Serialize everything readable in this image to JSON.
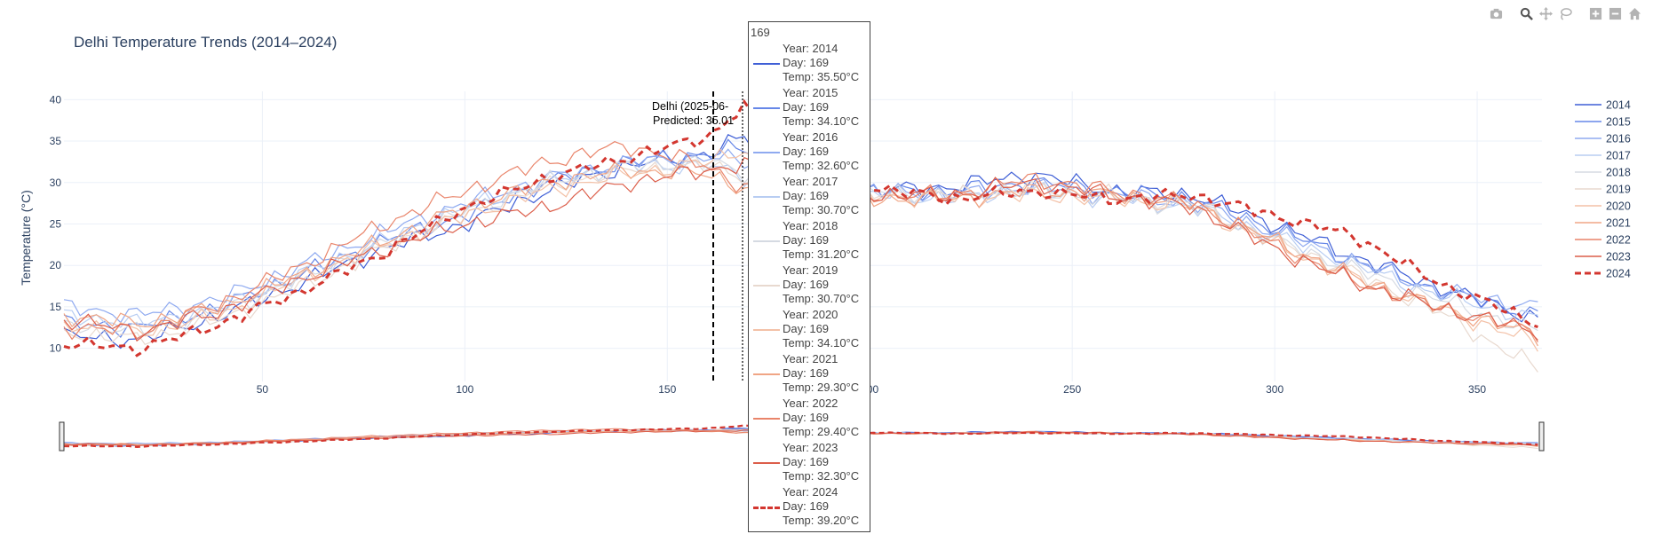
{
  "colors": {
    "2014": "#3f5fd6",
    "2015": "#6687e8",
    "2016": "#8faaf0",
    "2017": "#b8cdf2",
    "2018": "#d5dae2",
    "2019": "#e8d9cf",
    "2020": "#f3c1a7",
    "2021": "#f0a585",
    "2022": "#e9846a",
    "2023": "#dc5e4a",
    "2024": "#d3362f"
  },
  "modebar": {
    "icons": [
      "camera-icon",
      "zoom-icon",
      "pan-icon",
      "lasso-icon",
      "zoom-in-icon",
      "zoom-out-icon",
      "home-icon"
    ]
  },
  "annotation": {
    "line1": "Delhi (2025-06-",
    "line2": "Predicted: 35.01"
  },
  "hover": {
    "title": "169",
    "items": [
      {
        "year": "Year: 2014",
        "day": "Day: 169",
        "temp": "Temp: 35.50°C"
      },
      {
        "year": "Year: 2015",
        "day": "Day: 169",
        "temp": "Temp: 34.10°C"
      },
      {
        "year": "Year: 2016",
        "day": "Day: 169",
        "temp": "Temp: 32.60°C"
      },
      {
        "year": "Year: 2017",
        "day": "Day: 169",
        "temp": "Temp: 30.70°C"
      },
      {
        "year": "Year: 2018",
        "day": "Day: 169",
        "temp": "Temp: 31.20°C"
      },
      {
        "year": "Year: 2019",
        "day": "Day: 169",
        "temp": "Temp: 30.70°C"
      },
      {
        "year": "Year: 2020",
        "day": "Day: 169",
        "temp": "Temp: 34.10°C"
      },
      {
        "year": "Year: 2021",
        "day": "Day: 169",
        "temp": "Temp: 29.30°C"
      },
      {
        "year": "Year: 2022",
        "day": "Day: 169",
        "temp": "Temp: 29.40°C"
      },
      {
        "year": "Year: 2023",
        "day": "Day: 169",
        "temp": "Temp: 32.30°C"
      },
      {
        "year": "Year: 2024",
        "day": "Day: 169",
        "temp": "Temp: 39.20°C"
      }
    ]
  },
  "chart_data": {
    "type": "line",
    "title": "Delhi Temperature Trends (2014–2024)",
    "xlabel": "",
    "ylabel": "Temperature (°C)",
    "xlim": [
      1,
      366
    ],
    "ylim": [
      6,
      41
    ],
    "x_ticks": [
      50,
      100,
      150,
      200,
      250,
      300,
      350
    ],
    "y_ticks": [
      10,
      15,
      20,
      25,
      30,
      35,
      40
    ],
    "grid": true,
    "legend_position": "right",
    "rangeslider": true,
    "vertical_marker_x": 169,
    "series": [
      {
        "name": "2014",
        "dash": "solid",
        "amp": 1.2,
        "offset": 0.0,
        "x": [
          1,
          20,
          40,
          60,
          80,
          100,
          120,
          140,
          160,
          169,
          180,
          200,
          220,
          240,
          260,
          280,
          300,
          320,
          340,
          365
        ],
        "values": [
          11.5,
          11.0,
          14.0,
          18.0,
          22.0,
          25.0,
          29.0,
          32.0,
          33.5,
          35.5,
          30.0,
          29.0,
          29.5,
          31.0,
          29.0,
          28.5,
          25.0,
          21.0,
          17.5,
          13.5
        ]
      },
      {
        "name": "2015",
        "dash": "solid",
        "amp": 1.2,
        "offset": 0.3,
        "x": [
          1,
          20,
          40,
          60,
          80,
          100,
          120,
          140,
          160,
          169,
          180,
          200,
          220,
          240,
          260,
          280,
          300,
          320,
          340,
          365
        ],
        "values": [
          13.0,
          12.5,
          15.0,
          19.0,
          23.0,
          26.0,
          30.0,
          32.5,
          33.5,
          34.1,
          30.5,
          29.0,
          29.0,
          30.0,
          29.0,
          28.0,
          24.5,
          20.5,
          17.0,
          14.0
        ]
      },
      {
        "name": "2016",
        "dash": "solid",
        "amp": 1.2,
        "offset": 0.6,
        "x": [
          1,
          20,
          40,
          60,
          80,
          100,
          120,
          140,
          160,
          169,
          180,
          200,
          220,
          240,
          260,
          280,
          300,
          320,
          340,
          365
        ],
        "values": [
          15.0,
          14.0,
          16.0,
          20.0,
          24.0,
          27.5,
          30.5,
          32.5,
          33.0,
          32.6,
          30.0,
          29.0,
          28.5,
          29.5,
          28.5,
          27.5,
          24.0,
          20.5,
          17.0,
          15.0
        ]
      },
      {
        "name": "2017",
        "dash": "solid",
        "amp": 1.2,
        "offset": 0.9,
        "x": [
          1,
          20,
          40,
          60,
          80,
          100,
          120,
          140,
          160,
          169,
          180,
          200,
          220,
          240,
          260,
          280,
          300,
          320,
          340,
          365
        ],
        "values": [
          14.0,
          13.0,
          15.0,
          19.0,
          23.0,
          27.0,
          30.0,
          32.0,
          32.0,
          30.7,
          29.5,
          28.5,
          28.0,
          29.0,
          28.0,
          27.0,
          23.5,
          20.0,
          16.5,
          13.5
        ]
      },
      {
        "name": "2018",
        "dash": "solid",
        "amp": 1.2,
        "offset": 1.2,
        "x": [
          1,
          20,
          40,
          60,
          80,
          100,
          120,
          140,
          160,
          169,
          180,
          200,
          220,
          240,
          260,
          280,
          300,
          320,
          340,
          365
        ],
        "values": [
          13.0,
          12.0,
          14.5,
          18.5,
          22.5,
          26.5,
          30.0,
          32.0,
          32.5,
          31.2,
          29.5,
          29.0,
          28.5,
          29.0,
          28.0,
          27.0,
          23.0,
          19.5,
          16.0,
          12.0
        ]
      },
      {
        "name": "2019",
        "dash": "solid",
        "amp": 1.2,
        "offset": 1.5,
        "x": [
          1,
          20,
          40,
          60,
          80,
          100,
          120,
          140,
          160,
          169,
          180,
          200,
          220,
          240,
          260,
          280,
          300,
          320,
          340,
          365
        ],
        "values": [
          12.0,
          11.0,
          13.5,
          17.5,
          22.0,
          26.0,
          29.5,
          31.5,
          32.0,
          30.7,
          29.0,
          28.5,
          28.5,
          29.5,
          28.5,
          27.5,
          23.0,
          19.0,
          14.5,
          7.5
        ]
      },
      {
        "name": "2020",
        "dash": "solid",
        "amp": 1.2,
        "offset": 1.8,
        "x": [
          1,
          20,
          40,
          60,
          80,
          100,
          120,
          140,
          160,
          169,
          180,
          200,
          220,
          240,
          260,
          280,
          300,
          320,
          340,
          365
        ],
        "values": [
          13.0,
          12.0,
          14.0,
          18.5,
          22.5,
          26.0,
          29.0,
          31.0,
          32.5,
          34.1,
          29.5,
          28.5,
          28.0,
          28.5,
          28.0,
          27.0,
          22.5,
          18.5,
          15.0,
          10.5
        ]
      },
      {
        "name": "2021",
        "dash": "solid",
        "amp": 1.2,
        "offset": 2.1,
        "x": [
          1,
          20,
          40,
          60,
          80,
          100,
          120,
          140,
          160,
          169,
          180,
          200,
          220,
          240,
          260,
          280,
          300,
          320,
          340,
          365
        ],
        "values": [
          14.0,
          13.0,
          15.0,
          19.0,
          23.0,
          27.0,
          30.0,
          31.5,
          31.0,
          29.3,
          29.0,
          28.0,
          28.0,
          29.0,
          28.5,
          27.5,
          23.0,
          18.5,
          15.0,
          11.5
        ]
      },
      {
        "name": "2022",
        "dash": "solid",
        "amp": 1.2,
        "offset": 2.4,
        "x": [
          1,
          20,
          40,
          60,
          80,
          100,
          120,
          140,
          160,
          169,
          180,
          200,
          220,
          240,
          260,
          280,
          300,
          320,
          340,
          365
        ],
        "values": [
          12.5,
          12.0,
          15.5,
          20.0,
          25.0,
          29.0,
          32.5,
          34.5,
          32.0,
          29.4,
          29.0,
          28.5,
          28.5,
          30.5,
          29.0,
          27.5,
          22.5,
          18.0,
          15.0,
          12.0
        ]
      },
      {
        "name": "2023",
        "dash": "solid",
        "amp": 1.2,
        "offset": 2.7,
        "x": [
          1,
          20,
          40,
          60,
          80,
          100,
          120,
          140,
          160,
          169,
          180,
          200,
          220,
          240,
          260,
          280,
          300,
          320,
          340,
          365
        ],
        "values": [
          13.5,
          12.0,
          14.5,
          18.5,
          22.0,
          25.0,
          27.0,
          30.0,
          31.5,
          32.3,
          29.5,
          28.5,
          28.5,
          30.0,
          28.5,
          27.0,
          22.0,
          18.0,
          15.0,
          12.0
        ]
      },
      {
        "name": "2024",
        "dash": "dash",
        "amp": 0.9,
        "offset": 3.0,
        "x": [
          1,
          20,
          40,
          60,
          80,
          100,
          120,
          140,
          160,
          169,
          180,
          200,
          220,
          240,
          260,
          280,
          300,
          320,
          340,
          365
        ],
        "values": [
          10.5,
          10.0,
          13.0,
          17.0,
          21.5,
          27.0,
          30.5,
          33.0,
          35.5,
          39.2,
          30.5,
          29.5,
          28.0,
          29.0,
          28.0,
          28.5,
          26.0,
          23.5,
          18.0,
          13.0
        ]
      }
    ]
  }
}
